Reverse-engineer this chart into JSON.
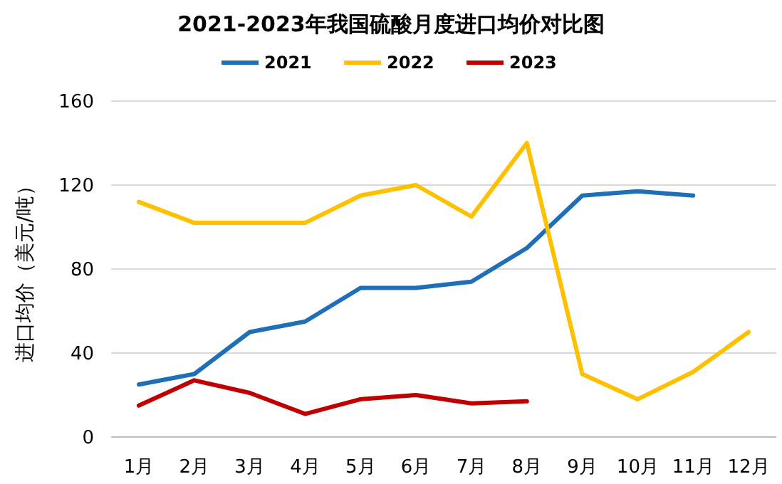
{
  "chart_data": {
    "type": "line",
    "title": "2021-2023年我国硫酸月度进口均价对比图",
    "ylabel": "进口均价（美元/吨）",
    "categories": [
      "1月",
      "2月",
      "3月",
      "4月",
      "5月",
      "6月",
      "7月",
      "8月",
      "9月",
      "10月",
      "11月",
      "12月"
    ],
    "series": [
      {
        "name": "2021",
        "color": "#1f6fb8",
        "values": [
          25,
          30,
          50,
          55,
          71,
          71,
          74,
          90,
          115,
          117,
          115,
          null
        ]
      },
      {
        "name": "2022",
        "color": "#ffc000",
        "values": [
          112,
          102,
          102,
          102,
          115,
          120,
          105,
          140,
          30,
          18,
          31,
          50
        ]
      },
      {
        "name": "2023",
        "color": "#c00000",
        "values": [
          15,
          27,
          21,
          11,
          18,
          20,
          16,
          17,
          null,
          null,
          null,
          null
        ]
      }
    ],
    "ylim": [
      0,
      160
    ],
    "yticks": [
      0,
      40,
      80,
      120,
      160
    ],
    "grid": "y",
    "legend": "top"
  }
}
